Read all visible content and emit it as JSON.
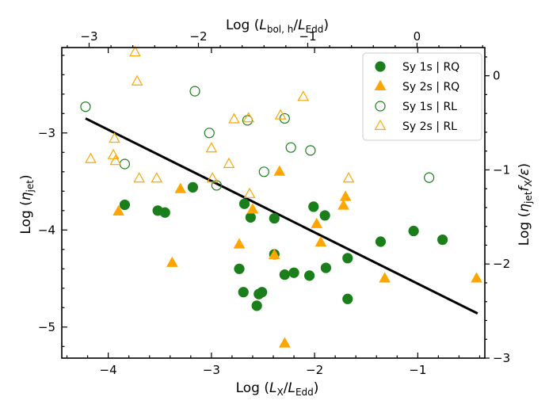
{
  "chart_data": {
    "type": "scatter",
    "xlabel_main": "Log (",
    "xlabel_sym": "L",
    "xlabel_sub": "X",
    "xlabel_mid": "/",
    "xlabel_sym2": "L",
    "xlabel_sub2": "Edd",
    "xlabel_end": ")",
    "ylabel_main": "Log (",
    "ylabel_sym": "η",
    "ylabel_sub": "jet",
    "ylabel_end": ")",
    "top_xlabel_main": "Log (",
    "top_xlabel_sym": "L",
    "top_xlabel_sub": "bol, h",
    "top_xlabel_mid": "/",
    "top_xlabel_sym2": "L",
    "top_xlabel_sub2": "Edd",
    "top_xlabel_end": ")",
    "right_ylabel_main": "Log (",
    "right_ylabel_sym": "η",
    "right_ylabel_sub": "jet",
    "right_ylabel_sym2": "f",
    "right_ylabel_sub2": "X",
    "right_ylabel_sym3": "/ε",
    "right_ylabel_end": ")",
    "xlim": [
      -4.45,
      -0.35
    ],
    "ylim": [
      -5.32,
      -2.12
    ],
    "top_xlim": [
      -3.25,
      0.62
    ],
    "right_ylim": [
      -3.0,
      0.3
    ],
    "x_ticks": [
      -4,
      -3,
      -2,
      -1
    ],
    "x_tick_labels": [
      "−4",
      "−3",
      "−2",
      "−1"
    ],
    "y_ticks": [
      -5,
      -4,
      -3
    ],
    "y_tick_labels": [
      "−5",
      "−4",
      "−3"
    ],
    "top_ticks": [
      -3,
      -2,
      -1,
      0
    ],
    "top_tick_labels": [
      "−3",
      "−2",
      "−1",
      "0"
    ],
    "right_ticks": [
      -3,
      -2,
      -1,
      0
    ],
    "right_tick_labels": [
      "−3",
      "−2",
      "−1",
      "0"
    ],
    "legend_placement": "top-right",
    "fit_line": {
      "x": [
        -4.22,
        -0.42
      ],
      "y": [
        -2.85,
        -4.86
      ],
      "color": "#000000"
    },
    "series": [
      {
        "name": "Sy 1s | RQ",
        "marker": "circle",
        "filled": true,
        "color": "#1a7f1a",
        "points": [
          [
            -3.84,
            -3.74
          ],
          [
            -3.52,
            -3.8
          ],
          [
            -3.45,
            -3.82
          ],
          [
            -3.18,
            -3.56
          ],
          [
            -2.68,
            -3.73
          ],
          [
            -2.62,
            -3.87
          ],
          [
            -2.39,
            -3.88
          ],
          [
            -2.73,
            -4.4
          ],
          [
            -2.69,
            -4.64
          ],
          [
            -2.56,
            -4.78
          ],
          [
            -2.54,
            -4.66
          ],
          [
            -2.51,
            -4.64
          ],
          [
            -2.39,
            -4.25
          ],
          [
            -2.29,
            -4.46
          ],
          [
            -2.2,
            -4.44
          ],
          [
            -2.05,
            -4.47
          ],
          [
            -2.01,
            -3.76
          ],
          [
            -1.9,
            -3.85
          ],
          [
            -1.89,
            -4.39
          ],
          [
            -1.68,
            -4.29
          ],
          [
            -1.68,
            -4.71
          ],
          [
            -1.36,
            -4.12
          ],
          [
            -1.04,
            -4.01
          ],
          [
            -0.76,
            -4.1
          ]
        ]
      },
      {
        "name": "Sy 2s | RQ",
        "marker": "triangle",
        "filled": true,
        "color": "#ffa500",
        "points": [
          [
            -3.9,
            -3.81
          ],
          [
            -3.38,
            -4.34
          ],
          [
            -3.3,
            -3.58
          ],
          [
            -2.73,
            -4.15
          ],
          [
            -2.6,
            -3.79
          ],
          [
            -2.39,
            -4.26
          ],
          [
            -2.34,
            -3.4
          ],
          [
            -2.29,
            -5.17
          ],
          [
            -1.98,
            -3.94
          ],
          [
            -1.94,
            -4.13
          ],
          [
            -1.72,
            -3.75
          ],
          [
            -1.7,
            -3.66
          ],
          [
            -1.32,
            -4.5
          ],
          [
            -0.43,
            -4.5
          ]
        ]
      },
      {
        "name": "Sy 1s | RL",
        "marker": "circle",
        "filled": false,
        "color": "#1a7f1a",
        "points": [
          [
            -4.22,
            -2.73
          ],
          [
            -3.84,
            -3.32
          ],
          [
            -3.16,
            -2.57
          ],
          [
            -3.02,
            -3.0
          ],
          [
            -2.95,
            -3.54
          ],
          [
            -2.65,
            -2.87
          ],
          [
            -2.49,
            -3.4
          ],
          [
            -2.29,
            -2.85
          ],
          [
            -2.23,
            -3.15
          ],
          [
            -2.04,
            -3.18
          ],
          [
            -0.89,
            -3.46
          ]
        ]
      },
      {
        "name": "Sy 2s | RL",
        "marker": "triangle",
        "filled": false,
        "color": "#ffa500",
        "points": [
          [
            -4.17,
            -3.27
          ],
          [
            -3.94,
            -3.06
          ],
          [
            -3.95,
            -3.23
          ],
          [
            -3.93,
            -3.29
          ],
          [
            -3.74,
            -2.17
          ],
          [
            -3.72,
            -2.47
          ],
          [
            -3.7,
            -3.47
          ],
          [
            -3.53,
            -3.47
          ],
          [
            -3.0,
            -3.16
          ],
          [
            -2.99,
            -3.47
          ],
          [
            -2.83,
            -3.32
          ],
          [
            -2.78,
            -2.86
          ],
          [
            -2.64,
            -2.85
          ],
          [
            -2.63,
            -3.63
          ],
          [
            -2.33,
            -2.82
          ],
          [
            -2.11,
            -2.63
          ],
          [
            -1.67,
            -3.47
          ]
        ]
      }
    ]
  }
}
